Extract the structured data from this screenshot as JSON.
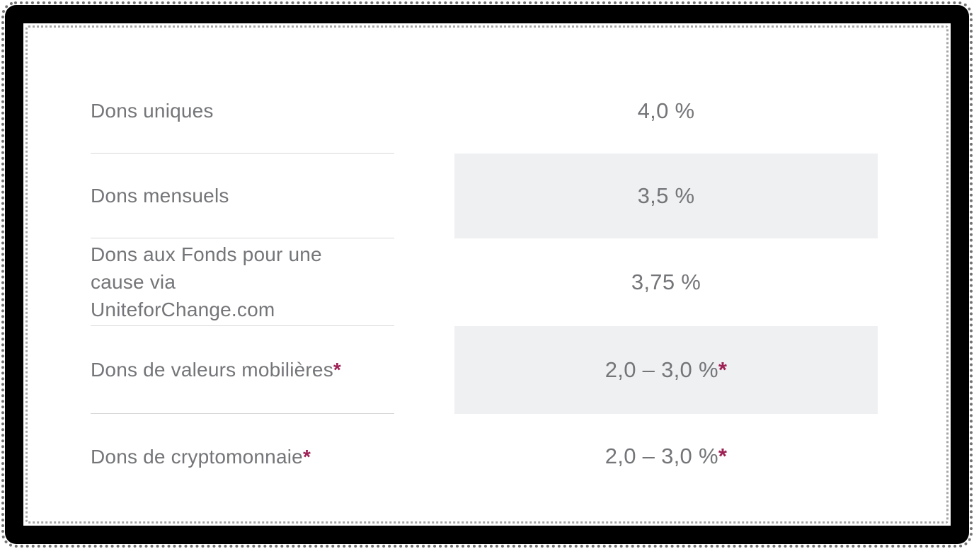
{
  "chart_data": {
    "type": "table",
    "rows": [
      {
        "label": "Dons uniques",
        "label_note": "",
        "value": "4,0 %",
        "value_note": ""
      },
      {
        "label": "Dons mensuels",
        "label_note": "",
        "value": "3,5 %",
        "value_note": ""
      },
      {
        "label": "Dons aux Fonds pour une cause via UniteforChange.com",
        "label_note": "",
        "value": "3,75 %",
        "value_note": ""
      },
      {
        "label": "Dons de valeurs mobilières",
        "label_note": "*",
        "value": "2,0 – 3,0 %",
        "value_note": "*"
      },
      {
        "label": "Dons de cryptomonnaie",
        "label_note": "*",
        "value": "2,0 – 3,0 %",
        "value_note": "*"
      }
    ]
  },
  "colors": {
    "text": "#747578",
    "asterisk_accent": "#9e2155",
    "shaded_row_bg": "#eff0f2",
    "divider": "#d8d8d8",
    "frame": "#000000",
    "background": "#ffffff"
  }
}
